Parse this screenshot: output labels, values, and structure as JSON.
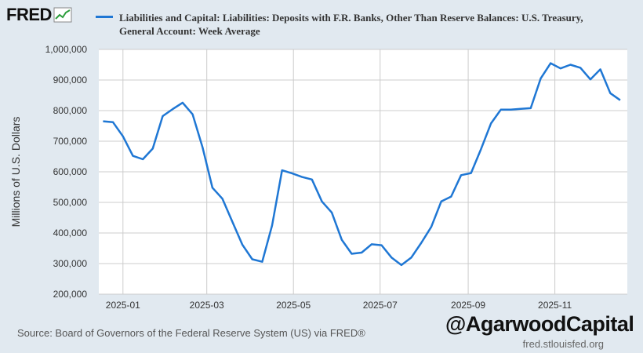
{
  "header": {
    "logo": "FRED",
    "legend_line1": "Liabilities and Capital: Liabilities: Deposits with F.R. Banks, Other Than Reserve Balances: U.S. Treasury,",
    "legend_line2": "General Account: Week Average"
  },
  "footer": {
    "source": "Source: Board of Governors of the Federal Reserve System (US) via FRED®",
    "credit": "fred.stlouisfed.org"
  },
  "watermark": "@AgarwoodCapital",
  "colors": {
    "series": "#1f77d4",
    "background": "#e1e9f0",
    "plot": "#ffffff"
  },
  "chart_data": {
    "type": "line",
    "title": "Liabilities and Capital: Liabilities: Deposits with F.R. Banks, Other Than Reserve Balances: U.S. Treasury, General Account: Week Average",
    "xlabel": "",
    "ylabel": "Millions of U.S. Dollars",
    "ylim": [
      200000,
      1000000
    ],
    "xlim": [
      "2024-12-15",
      "2025-12-22"
    ],
    "grid": true,
    "legend": "top",
    "y_ticks": [
      200000,
      300000,
      400000,
      500000,
      600000,
      700000,
      800000,
      900000,
      1000000
    ],
    "y_tick_labels": [
      "200,000",
      "300,000",
      "400,000",
      "500,000",
      "600,000",
      "700,000",
      "800,000",
      "900,000",
      "1,000,000"
    ],
    "x_ticks": [
      "2025-01-01",
      "2025-03-01",
      "2025-05-01",
      "2025-07-01",
      "2025-09-01",
      "2025-11-01"
    ],
    "x_tick_labels": [
      "2025-01",
      "2025-03",
      "2025-05",
      "2025-07",
      "2025-09",
      "2025-11"
    ],
    "series": [
      {
        "name": "Liabilities and Capital: Liabilities: Deposits with F.R. Banks, Other Than Reserve Balances: U.S. Treasury, General Account: Week Average",
        "x": [
          "2024-12-18",
          "2024-12-25",
          "2025-01-01",
          "2025-01-08",
          "2025-01-15",
          "2025-01-22",
          "2025-01-29",
          "2025-02-05",
          "2025-02-12",
          "2025-02-19",
          "2025-02-26",
          "2025-03-05",
          "2025-03-12",
          "2025-03-19",
          "2025-03-26",
          "2025-04-02",
          "2025-04-09",
          "2025-04-16",
          "2025-04-23",
          "2025-04-30",
          "2025-05-07",
          "2025-05-14",
          "2025-05-21",
          "2025-05-28",
          "2025-06-04",
          "2025-06-11",
          "2025-06-18",
          "2025-06-25",
          "2025-07-02",
          "2025-07-09",
          "2025-07-16",
          "2025-07-23",
          "2025-07-30",
          "2025-08-06",
          "2025-08-13",
          "2025-08-20",
          "2025-08-27",
          "2025-09-03",
          "2025-09-10",
          "2025-09-17",
          "2025-09-24",
          "2025-10-01",
          "2025-10-08",
          "2025-10-15",
          "2025-10-22",
          "2025-10-29",
          "2025-11-05",
          "2025-11-12",
          "2025-11-19",
          "2025-11-26",
          "2025-12-03",
          "2025-12-10",
          "2025-12-17"
        ],
        "values": [
          765000,
          762000,
          716000,
          652000,
          641000,
          676000,
          782000,
          805000,
          826000,
          788000,
          680000,
          548000,
          512000,
          437000,
          362000,
          314000,
          306000,
          425000,
          605000,
          595000,
          583000,
          575000,
          503000,
          467000,
          378000,
          332000,
          336000,
          363000,
          360000,
          320000,
          295000,
          320000,
          368000,
          420000,
          503000,
          519000,
          589000,
          596000,
          674000,
          758000,
          803000,
          803000,
          806000,
          808000,
          905000,
          955000,
          938000,
          950000,
          940000,
          902000,
          935000,
          857000,
          834000
        ]
      }
    ]
  }
}
